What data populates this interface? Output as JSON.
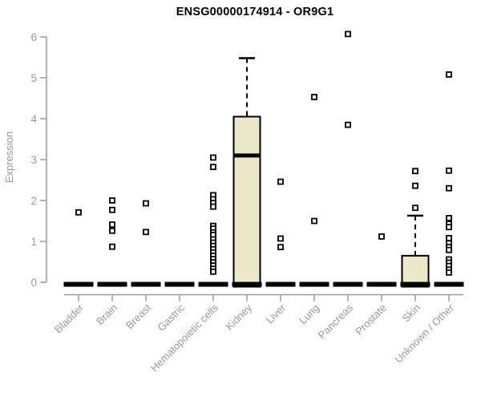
{
  "header": {
    "title": "ENSG00000174914 - OR9G1"
  },
  "chart_data": {
    "type": "boxplot",
    "title": "ENSG00000174914 - OR9G1",
    "ylabel": "Expression",
    "xlabel": "",
    "ylim": [
      0,
      6
    ],
    "yticks": [
      0,
      1,
      2,
      3,
      4,
      5,
      6
    ],
    "grid": false,
    "legend": "none",
    "categories": [
      "Bladder",
      "Brain",
      "Breast",
      "Gastric",
      "Hematopoietic cells",
      "Kidney",
      "Liver",
      "Lung",
      "Pancreas",
      "Prostate",
      "Skin",
      "Unknown / Other"
    ],
    "colors": {
      "box_fill": "#ECE7C9",
      "box_border": "#000000",
      "median": "#000000",
      "point": "#000000",
      "axis": "#999999",
      "label_text": "#999999",
      "title_text": "#000000",
      "background": "#FFFFFF"
    },
    "series": [
      {
        "category": "Bladder",
        "box": {
          "q1": 0,
          "median": 0,
          "q3": 0,
          "whisker_low": 0,
          "whisker_high": 0
        },
        "points": [
          1.71
        ]
      },
      {
        "category": "Brain",
        "box": {
          "q1": 0,
          "median": 0,
          "q3": 0,
          "whisker_low": 0,
          "whisker_high": 0
        },
        "points": [
          2.0,
          1.77,
          1.41,
          1.26,
          0.87
        ]
      },
      {
        "category": "Breast",
        "box": {
          "q1": 0,
          "median": 0,
          "q3": 0,
          "whisker_low": 0,
          "whisker_high": 0
        },
        "points": [
          1.93,
          1.23
        ]
      },
      {
        "category": "Gastric",
        "box": {
          "q1": 0,
          "median": 0,
          "q3": 0,
          "whisker_low": 0,
          "whisker_high": 0
        },
        "points": []
      },
      {
        "category": "Hematopoietic cells",
        "box": {
          "q1": 0,
          "median": 0,
          "q3": 0,
          "whisker_low": 0,
          "whisker_high": 0
        },
        "points": [
          3.05,
          2.82,
          2.13,
          2.03,
          1.94,
          1.85,
          1.38,
          1.31,
          1.22,
          1.16,
          1.05,
          0.97,
          0.89,
          0.81,
          0.73,
          0.65,
          0.57,
          0.49,
          0.41,
          0.33,
          0.26
        ]
      },
      {
        "category": "Kidney",
        "box": {
          "q1": 0,
          "median": 3.1,
          "q3": 4.05,
          "whisker_low": 0,
          "whisker_high": 5.48
        },
        "points": []
      },
      {
        "category": "Liver",
        "box": {
          "q1": 0,
          "median": 0,
          "q3": 0,
          "whisker_low": 0,
          "whisker_high": 0
        },
        "points": [
          2.46,
          1.07,
          0.86
        ]
      },
      {
        "category": "Lung",
        "box": {
          "q1": 0,
          "median": 0,
          "q3": 0,
          "whisker_low": 0,
          "whisker_high": 0
        },
        "points": [
          4.53,
          1.5
        ]
      },
      {
        "category": "Pancreas",
        "box": {
          "q1": 0,
          "median": 0,
          "q3": 0,
          "whisker_low": 0,
          "whisker_high": 0
        },
        "points": [
          6.07,
          3.85
        ]
      },
      {
        "category": "Prostate",
        "box": {
          "q1": 0,
          "median": 0,
          "q3": 0,
          "whisker_low": 0,
          "whisker_high": 0
        },
        "points": [
          1.12
        ]
      },
      {
        "category": "Skin",
        "box": {
          "q1": 0,
          "median": 0,
          "q3": 0.65,
          "whisker_low": 0,
          "whisker_high": 1.63
        },
        "points": [
          2.72,
          2.36,
          1.82
        ]
      },
      {
        "category": "Unknown / Other",
        "box": {
          "q1": 0,
          "median": 0,
          "q3": 0,
          "whisker_low": 0,
          "whisker_high": 0
        },
        "points": [
          5.08,
          2.73,
          2.3,
          1.57,
          1.43,
          1.35,
          1.08,
          0.96,
          0.86,
          0.79,
          0.56,
          0.48,
          0.4,
          0.31,
          0.24
        ]
      }
    ]
  }
}
